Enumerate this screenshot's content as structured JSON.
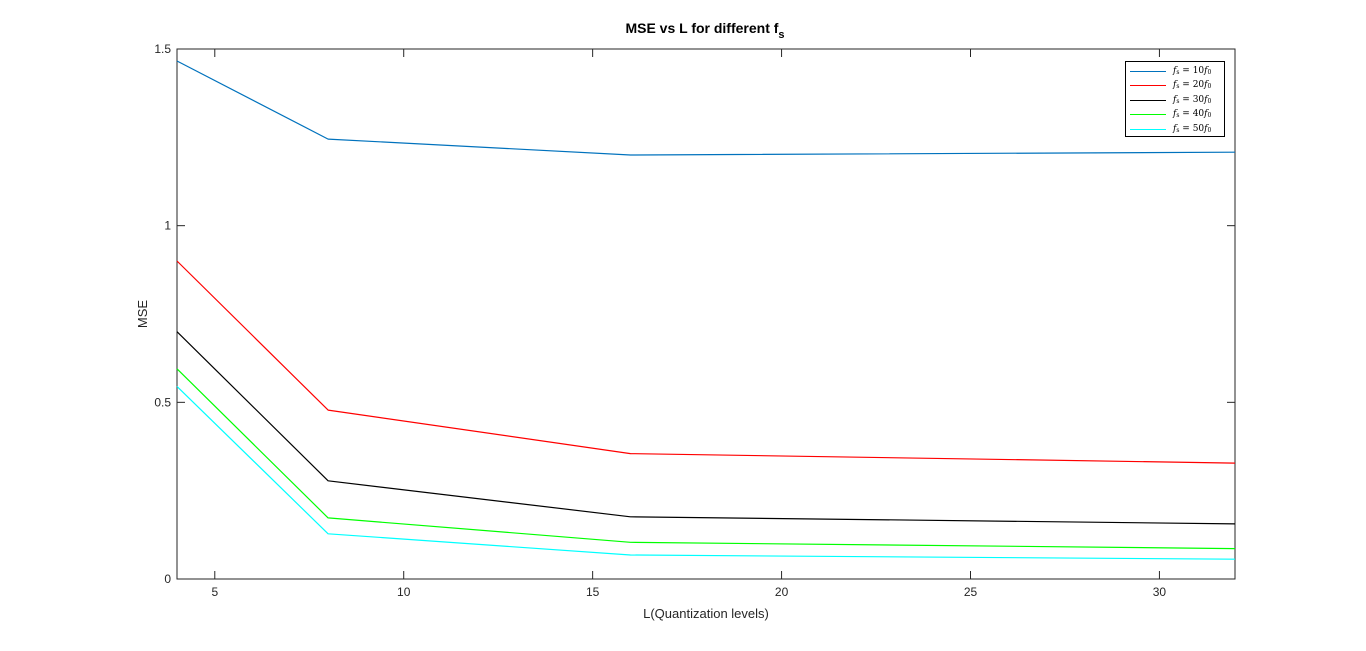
{
  "chart_data": {
    "type": "line",
    "title": "MSE vs L for different f",
    "title_subscript": "s",
    "xlabel": "L(Quantization levels)",
    "ylabel": "MSE",
    "xlim": [
      4,
      32
    ],
    "ylim": [
      0,
      1.5
    ],
    "xticks": [
      5,
      10,
      15,
      20,
      25,
      30
    ],
    "yticks": [
      0,
      0.5,
      1,
      1.5
    ],
    "grid": false,
    "legend_position": "top-right",
    "x": [
      4,
      8,
      16,
      32
    ],
    "series": [
      {
        "name": "fs = 10f0",
        "legend": {
          "var": "f",
          "var_sub": "s",
          "eq": " = 10",
          "term": "f",
          "term_sub": "0"
        },
        "color": "#0072BD",
        "values": [
          1.466,
          1.245,
          1.2,
          1.208
        ]
      },
      {
        "name": "fs = 20f0",
        "legend": {
          "var": "f",
          "var_sub": "s",
          "eq": " = 20",
          "term": "f",
          "term_sub": "0"
        },
        "color": "#FF0000",
        "values": [
          0.9,
          0.478,
          0.355,
          0.328
        ]
      },
      {
        "name": "fs = 30f0",
        "legend": {
          "var": "f",
          "var_sub": "s",
          "eq": " = 30",
          "term": "f",
          "term_sub": "0"
        },
        "color": "#000000",
        "values": [
          0.7,
          0.278,
          0.176,
          0.156
        ]
      },
      {
        "name": "fs = 40f0",
        "legend": {
          "var": "f",
          "var_sub": "s",
          "eq": " = 40",
          "term": "f",
          "term_sub": "0"
        },
        "color": "#00FF00",
        "values": [
          0.595,
          0.173,
          0.104,
          0.086
        ]
      },
      {
        "name": "fs = 50f0",
        "legend": {
          "var": "f",
          "var_sub": "s",
          "eq": " = 50",
          "term": "f",
          "term_sub": "0"
        },
        "color": "#00FFFF",
        "values": [
          0.545,
          0.128,
          0.068,
          0.056
        ]
      }
    ]
  }
}
